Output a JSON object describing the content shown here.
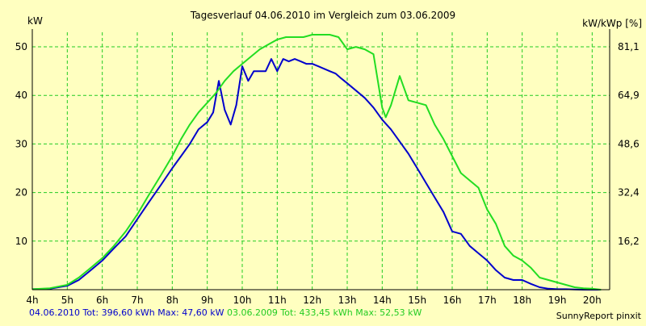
{
  "chart_data": {
    "type": "line",
    "title": "Tagesverlauf 04.06.2010 im Vergleich zum 03.06.2009",
    "ylabel_left": "kW",
    "ylabel_right": "kW/kWp [%]",
    "x_ticks": [
      "4h",
      "5h",
      "6h",
      "7h",
      "8h",
      "9h",
      "10h",
      "11h",
      "12h",
      "13h",
      "14h",
      "15h",
      "16h",
      "17h",
      "18h",
      "19h",
      "20h"
    ],
    "x_range": [
      4,
      20.5
    ],
    "y_left_ticks": [
      10,
      20,
      30,
      40,
      50
    ],
    "y_left_range": [
      0,
      53
    ],
    "y_right_ticks": [
      "16,2",
      "32,4",
      "48,6",
      "64,9",
      "81,1"
    ],
    "grid": true,
    "colors": {
      "background": "#ffffc0",
      "grid": "#22cc22",
      "series_2010": "#0000cc",
      "series_2009": "#22dd22"
    },
    "series": [
      {
        "name": "04.06.2010",
        "color": "#0000cc",
        "x": [
          4,
          4.5,
          5,
          5.33,
          5.67,
          6,
          6.33,
          6.67,
          7,
          7.33,
          7.67,
          8,
          8.25,
          8.5,
          8.75,
          9,
          9.17,
          9.33,
          9.5,
          9.67,
          9.83,
          10,
          10.17,
          10.33,
          10.5,
          10.67,
          10.83,
          11,
          11.17,
          11.33,
          11.5,
          11.67,
          11.83,
          12,
          12.17,
          12.33,
          12.5,
          12.67,
          12.83,
          13,
          13.25,
          13.5,
          13.75,
          14,
          14.25,
          14.5,
          14.75,
          15,
          15.25,
          15.5,
          15.75,
          16,
          16.25,
          16.5,
          16.75,
          17,
          17.25,
          17.5,
          17.75,
          18,
          18.25,
          18.5,
          18.75,
          19,
          19.25,
          19.5,
          19.75,
          20,
          20.25
        ],
        "y": [
          0.1,
          0.2,
          0.8,
          2.0,
          4.0,
          6.0,
          8.5,
          11.0,
          14.5,
          18.0,
          21.5,
          25.0,
          27.5,
          30.0,
          33.0,
          34.5,
          36.5,
          43.0,
          37.0,
          34.0,
          38.0,
          46.0,
          43.0,
          45.0,
          45.0,
          45.0,
          47.5,
          45.0,
          47.5,
          47.0,
          47.5,
          47.0,
          46.5,
          46.5,
          46.0,
          45.5,
          45.0,
          44.5,
          43.5,
          42.5,
          41.0,
          39.5,
          37.5,
          35.0,
          33.0,
          30.5,
          28.0,
          25.0,
          22.0,
          19.0,
          16.0,
          12.0,
          11.5,
          9.0,
          7.5,
          6.0,
          4.0,
          2.5,
          2.0,
          2.0,
          1.2,
          0.5,
          0.2,
          0.1,
          0.1,
          0.05,
          0.0,
          0.0,
          0.0
        ]
      },
      {
        "name": "03.06.2009",
        "color": "#22dd22",
        "x": [
          4,
          4.5,
          5,
          5.33,
          5.67,
          6,
          6.33,
          6.67,
          7,
          7.33,
          7.67,
          8,
          8.25,
          8.5,
          8.75,
          9,
          9.25,
          9.5,
          9.75,
          10,
          10.25,
          10.5,
          10.75,
          11,
          11.25,
          11.5,
          11.75,
          12,
          12.25,
          12.5,
          12.75,
          13,
          13.25,
          13.5,
          13.75,
          14,
          14.1,
          14.25,
          14.5,
          14.75,
          15,
          15.25,
          15.5,
          15.75,
          16,
          16.25,
          16.5,
          16.75,
          17,
          17.25,
          17.5,
          17.75,
          18,
          18.25,
          18.5,
          18.75,
          19,
          19.25,
          19.5,
          19.75,
          20,
          20.25
        ],
        "y": [
          0.1,
          0.3,
          1.0,
          2.5,
          4.5,
          6.5,
          9.0,
          12.0,
          15.5,
          19.5,
          23.5,
          27.5,
          31.0,
          34.0,
          36.5,
          38.5,
          40.5,
          43.0,
          45.0,
          46.5,
          48.0,
          49.5,
          50.5,
          51.5,
          52.0,
          52.0,
          52.0,
          52.5,
          52.5,
          52.5,
          52.0,
          49.5,
          50.0,
          49.5,
          48.5,
          37.5,
          35.5,
          38.0,
          44.0,
          39.0,
          38.5,
          38.0,
          34.0,
          31.0,
          27.5,
          24.0,
          22.5,
          21.0,
          16.5,
          13.5,
          9.0,
          7.0,
          6.0,
          4.5,
          2.5,
          2.0,
          1.5,
          1.0,
          0.5,
          0.3,
          0.2,
          0.0
        ]
      }
    ],
    "footer": {
      "series1_text": "04.06.2010 Tot: 396,60 kWh Max: 47,60 kW",
      "series2_text": "03.06.2009 Tot: 433,45 kWh Max: 52,53 kW"
    },
    "credit": "SunnyReport pinxit"
  }
}
